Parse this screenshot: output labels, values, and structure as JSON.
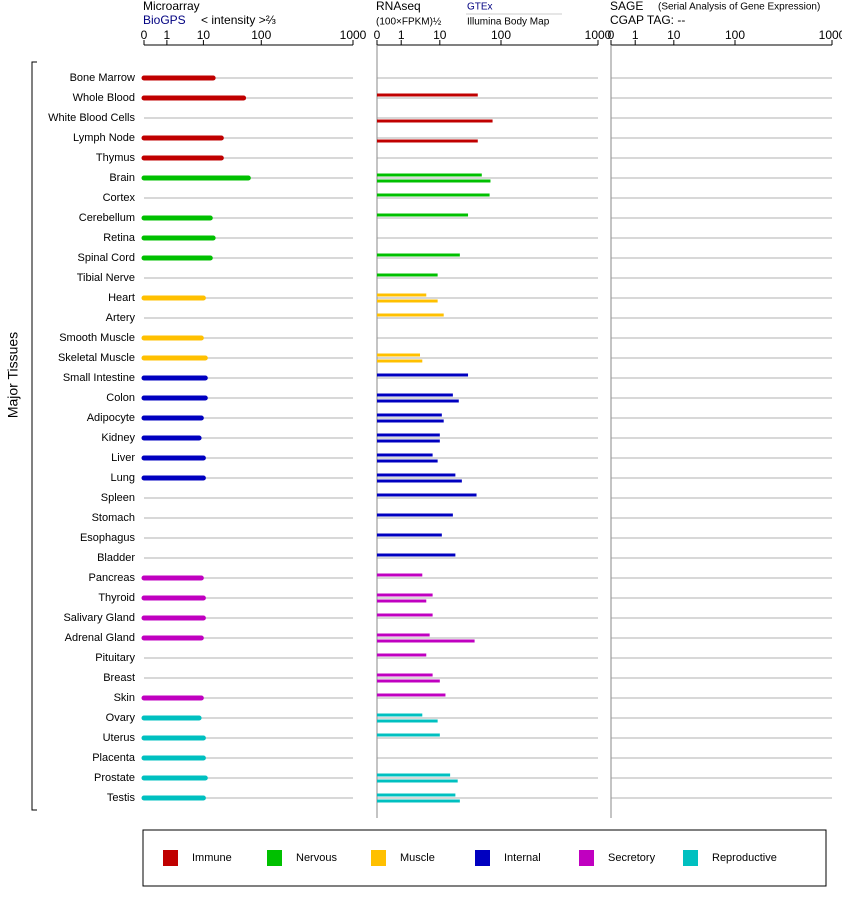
{
  "chart_data": {
    "type": "bar",
    "ylabel": "Major Tissues",
    "groups": [
      {
        "name": "Immune",
        "color": "#c00000",
        "categories": [
          "Bone Marrow",
          "Whole Blood",
          "White Blood Cells",
          "Lymph Node",
          "Thymus"
        ]
      },
      {
        "name": "Nervous",
        "color": "#00c000",
        "categories": [
          "Brain",
          "Cortex",
          "Cerebellum",
          "Retina",
          "Spinal Cord",
          "Tibial Nerve"
        ]
      },
      {
        "name": "Muscle",
        "color": "#ffc000",
        "categories": [
          "Heart",
          "Artery",
          "Smooth Muscle",
          "Skeletal Muscle"
        ]
      },
      {
        "name": "Internal",
        "color": "#0000c0",
        "categories": [
          "Small Intestine",
          "Colon",
          "Adipocyte",
          "Kidney",
          "Liver",
          "Lung",
          "Spleen",
          "Stomach",
          "Esophagus",
          "Bladder"
        ]
      },
      {
        "name": "Secretory",
        "color": "#c000c0",
        "categories": [
          "Pancreas",
          "Thyroid",
          "Salivary Gland",
          "Adrenal Gland",
          "Pituitary",
          "Breast",
          "Skin"
        ]
      },
      {
        "name": "Reproductive",
        "color": "#00c0c0",
        "categories": [
          "Ovary",
          "Uterus",
          "Placenta",
          "Prostate",
          "Testis"
        ]
      }
    ],
    "panels": [
      {
        "title": "Microarray",
        "axis_label": "< intensity >⅔",
        "xlim": [
          0,
          1000
        ],
        "xticks": [
          0,
          1,
          10,
          100,
          1000
        ],
        "series": [
          {
            "name": "BioGPS",
            "values": [
              16,
              55,
              null,
              23,
              23,
              65,
              null,
              14,
              16,
              14,
              null,
              10,
              null,
              9,
              11,
              11,
              11,
              9,
              8,
              10,
              10,
              null,
              null,
              null,
              null,
              9,
              10,
              10,
              9,
              null,
              null,
              9,
              8,
              10,
              10,
              11,
              10
            ]
          }
        ]
      },
      {
        "title": "RNAseq",
        "axis_label": "(100×FPKM)½",
        "xlim": [
          0,
          1000
        ],
        "xticks": [
          0,
          1,
          10,
          100,
          1000
        ],
        "series": [
          {
            "name": "GTEx",
            "values": [
              null,
              47,
              null,
              null,
              null,
              54,
              70,
              33,
              null,
              24,
              9,
              5,
              12,
              null,
              3.5,
              33,
              18,
              11,
              10,
              7,
              20,
              45,
              18,
              11,
              20,
              4,
              7,
              7,
              6,
              5,
              7,
              13,
              4,
              10,
              null,
              16,
              20
            ]
          },
          {
            "name": "Illumina Body Map",
            "values": [
              null,
              null,
              77,
              47,
              null,
              72,
              null,
              null,
              null,
              null,
              null,
              9,
              null,
              null,
              4,
              null,
              23,
              12,
              10,
              9,
              26,
              null,
              null,
              null,
              null,
              null,
              5,
              null,
              42,
              null,
              10,
              null,
              9,
              null,
              null,
              22,
              24
            ]
          }
        ]
      },
      {
        "title": "SAGE",
        "subtitle": "(Serial Analysis of Gene Expression)",
        "tag_label": "CGAP TAG:  --",
        "xlim": [
          0,
          1000
        ],
        "xticks": [
          0,
          1,
          10,
          100,
          1000
        ],
        "series": []
      }
    ]
  }
}
